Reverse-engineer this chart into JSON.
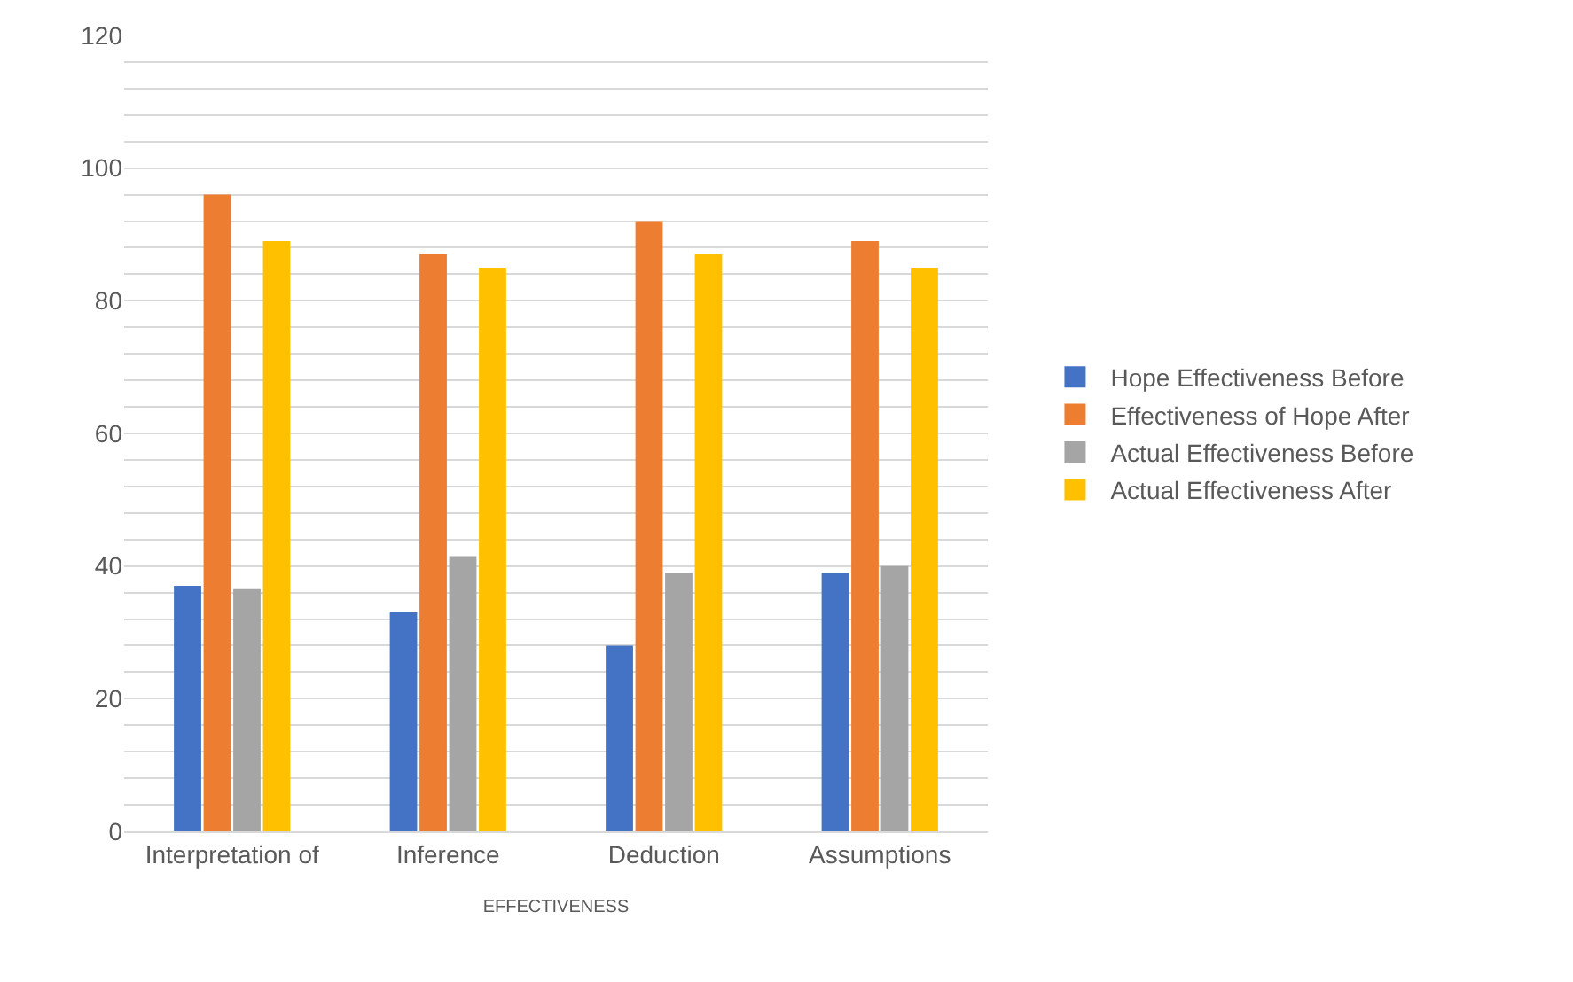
{
  "chart_data": {
    "type": "bar",
    "xlabel": "EFFECTIVENESS",
    "categories": [
      "Interpretation of",
      "Inference",
      "Deduction",
      "Assumptions"
    ],
    "series": [
      {
        "name": "Hope Effectiveness Before",
        "color": "#4472c4",
        "values": [
          37,
          33,
          28,
          39
        ]
      },
      {
        "name": "Effectiveness of Hope After",
        "color": "#ed7d31",
        "values": [
          96,
          87,
          92,
          89
        ]
      },
      {
        "name": "Actual Effectiveness Before",
        "color": "#a5a5a5",
        "values": [
          36.5,
          41.5,
          39,
          40
        ]
      },
      {
        "name": "Actual Effectiveness After",
        "color": "#ffc000",
        "values": [
          89,
          85,
          87,
          85
        ]
      }
    ],
    "ylim": [
      0,
      120
    ],
    "yticks": [
      0,
      {
        "value": 4,
        "label": null
      },
      {
        "value": 8,
        "label": null
      },
      {
        "value": 12,
        "label": null
      },
      {
        "value": 16,
        "label": null
      },
      20,
      {
        "value": 24,
        "label": null
      },
      {
        "value": 28,
        "label": null
      },
      {
        "value": 32,
        "label": null
      },
      {
        "value": 36,
        "label": null
      },
      40,
      {
        "value": 44,
        "label": null
      },
      {
        "value": 48,
        "label": null
      },
      {
        "value": 52,
        "label": null
      },
      {
        "value": 56,
        "label": null
      },
      60,
      {
        "value": 64,
        "label": null
      },
      {
        "value": 68,
        "label": null
      },
      {
        "value": 72,
        "label": null
      },
      {
        "value": 76,
        "label": null
      },
      80,
      {
        "value": 84,
        "label": null
      },
      {
        "value": 88,
        "label": null
      },
      {
        "value": 92,
        "label": null
      },
      {
        "value": 96,
        "label": null
      },
      100,
      {
        "value": 104,
        "label": null
      },
      {
        "value": 108,
        "label": null
      },
      {
        "value": 112,
        "label": null
      },
      {
        "value": 116,
        "label": null
      },
      120
    ],
    "grid": true,
    "legend": "right"
  }
}
